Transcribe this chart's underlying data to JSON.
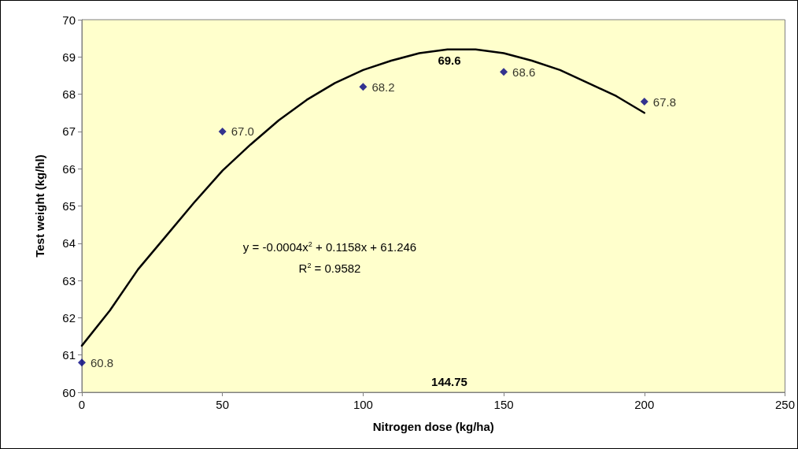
{
  "chart_data": {
    "type": "scatter",
    "xlabel": "Nitrogen dose (kg/ha)",
    "ylabel": "Test weight (kg/hl)",
    "xlim": [
      0,
      250
    ],
    "xticks": [
      0,
      50,
      100,
      150,
      200,
      250
    ],
    "ylim": [
      60,
      70
    ],
    "yticks": [
      60,
      61,
      62,
      63,
      64,
      65,
      66,
      67,
      68,
      69,
      70
    ],
    "grid": false,
    "marker": "diamond",
    "series": [
      {
        "color": "#000080",
        "x": [
          0,
          50,
          100,
          150,
          200
        ],
        "values": [
          60.8,
          67.0,
          68.2,
          68.6,
          67.8
        ],
        "value_labels": [
          "60.8",
          "67.0",
          "68.2",
          "68.6",
          "67.8"
        ]
      },
      {
        "type": "line",
        "color": "#000000",
        "marker": "none",
        "line_style": "solid",
        "x": [
          0,
          10,
          20,
          30,
          40,
          50,
          60,
          70,
          80,
          90,
          100,
          110,
          120,
          130,
          140,
          150,
          160,
          170,
          180,
          190,
          200
        ],
        "values": [
          61.25,
          62.2,
          63.3,
          64.2,
          65.1,
          65.95,
          66.65,
          67.3,
          67.85,
          68.3,
          68.65,
          68.9,
          69.1,
          69.2,
          69.2,
          69.1,
          68.9,
          68.65,
          68.3,
          67.95,
          67.5
        ]
      }
    ],
    "annotations": [
      "y = -0.0004x$^{2}$ + 0.1158x + 61.246",
      "R$^{2}$ = 0.9582",
      "69.6",
      "144.75"
    ]
  }
}
